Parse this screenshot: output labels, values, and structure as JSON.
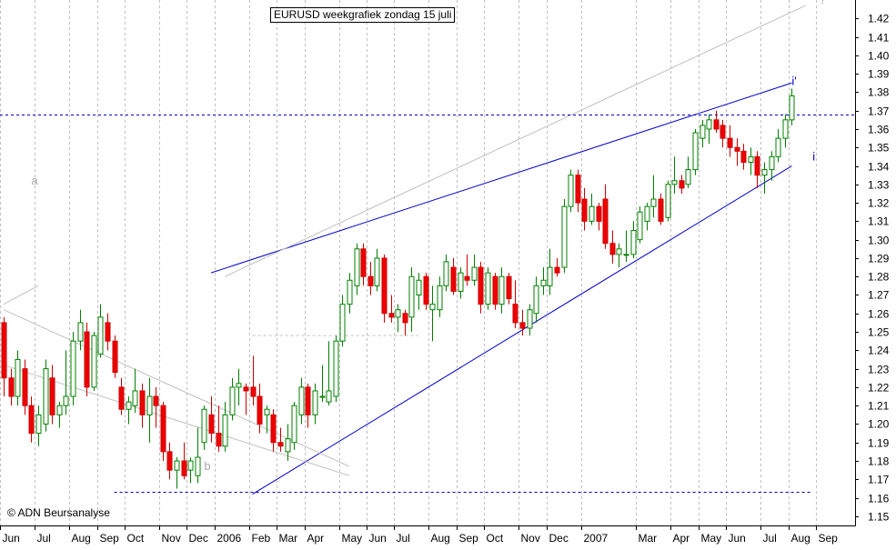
{
  "chart_data": {
    "type": "candlestick",
    "title": "EURUSD weekgrafiek zondag 15 juli",
    "credit": "© ADN Beursanalyse",
    "ylim": [
      1.145,
      1.43
    ],
    "y_ticks": [
      1.15,
      1.16,
      1.17,
      1.18,
      1.19,
      1.2,
      1.21,
      1.22,
      1.23,
      1.24,
      1.25,
      1.26,
      1.27,
      1.28,
      1.29,
      1.3,
      1.31,
      1.32,
      1.33,
      1.34,
      1.35,
      1.36,
      1.37,
      1.38,
      1.39,
      1.4,
      1.41,
      1.42
    ],
    "x_labels": [
      "Jun",
      "Jul",
      "Aug",
      "Sep",
      "Oct",
      "Nov",
      "Dec",
      "2006",
      "Feb",
      "Mar",
      "Apr",
      "May",
      "Jun",
      "Jul",
      "Aug",
      "Sep",
      "Oct",
      "Nov",
      "Dec",
      "2007",
      "Mar",
      "Apr",
      "May",
      "Jun",
      "Jul",
      "Aug",
      "Sep"
    ],
    "x_label_weeks": [
      0,
      5,
      10,
      14,
      18,
      23,
      27,
      31,
      36,
      40,
      44,
      49,
      53,
      57,
      62,
      66,
      70,
      75,
      79,
      84,
      92,
      97,
      101,
      105,
      110,
      114,
      118
    ],
    "weeks_shown": 124,
    "candles": [
      {
        "o": 1.255,
        "h": 1.258,
        "l": 1.215,
        "c": 1.225
      },
      {
        "o": 1.225,
        "h": 1.23,
        "l": 1.21,
        "c": 1.215
      },
      {
        "o": 1.215,
        "h": 1.24,
        "l": 1.21,
        "c": 1.235
      },
      {
        "o": 1.23,
        "h": 1.235,
        "l": 1.205,
        "c": 1.21
      },
      {
        "o": 1.21,
        "h": 1.215,
        "l": 1.19,
        "c": 1.195
      },
      {
        "o": 1.195,
        "h": 1.21,
        "l": 1.188,
        "c": 1.205
      },
      {
        "o": 1.2,
        "h": 1.235,
        "l": 1.196,
        "c": 1.23
      },
      {
        "o": 1.225,
        "h": 1.232,
        "l": 1.2,
        "c": 1.205
      },
      {
        "o": 1.205,
        "h": 1.212,
        "l": 1.198,
        "c": 1.21
      },
      {
        "o": 1.21,
        "h": 1.24,
        "l": 1.205,
        "c": 1.215
      },
      {
        "o": 1.215,
        "h": 1.25,
        "l": 1.21,
        "c": 1.245
      },
      {
        "o": 1.245,
        "h": 1.262,
        "l": 1.24,
        "c": 1.255
      },
      {
        "o": 1.25,
        "h": 1.255,
        "l": 1.215,
        "c": 1.22
      },
      {
        "o": 1.22,
        "h": 1.25,
        "l": 1.218,
        "c": 1.248
      },
      {
        "o": 1.238,
        "h": 1.265,
        "l": 1.236,
        "c": 1.258
      },
      {
        "o": 1.255,
        "h": 1.26,
        "l": 1.24,
        "c": 1.245
      },
      {
        "o": 1.245,
        "h": 1.248,
        "l": 1.225,
        "c": 1.228
      },
      {
        "o": 1.22,
        "h": 1.225,
        "l": 1.205,
        "c": 1.208
      },
      {
        "o": 1.208,
        "h": 1.215,
        "l": 1.2,
        "c": 1.212
      },
      {
        "o": 1.21,
        "h": 1.23,
        "l": 1.206,
        "c": 1.218
      },
      {
        "o": 1.218,
        "h": 1.222,
        "l": 1.198,
        "c": 1.205
      },
      {
        "o": 1.205,
        "h": 1.225,
        "l": 1.19,
        "c": 1.215
      },
      {
        "o": 1.215,
        "h": 1.22,
        "l": 1.198,
        "c": 1.21
      },
      {
        "o": 1.21,
        "h": 1.212,
        "l": 1.18,
        "c": 1.185
      },
      {
        "o": 1.185,
        "h": 1.19,
        "l": 1.17,
        "c": 1.175
      },
      {
        "o": 1.175,
        "h": 1.182,
        "l": 1.165,
        "c": 1.18
      },
      {
        "o": 1.18,
        "h": 1.19,
        "l": 1.17,
        "c": 1.172
      },
      {
        "o": 1.175,
        "h": 1.182,
        "l": 1.168,
        "c": 1.18
      },
      {
        "o": 1.172,
        "h": 1.198,
        "l": 1.168,
        "c": 1.182
      },
      {
        "o": 1.19,
        "h": 1.21,
        "l": 1.186,
        "c": 1.208
      },
      {
        "o": 1.205,
        "h": 1.215,
        "l": 1.19,
        "c": 1.195
      },
      {
        "o": 1.195,
        "h": 1.21,
        "l": 1.185,
        "c": 1.188
      },
      {
        "o": 1.188,
        "h": 1.212,
        "l": 1.185,
        "c": 1.205
      },
      {
        "o": 1.205,
        "h": 1.225,
        "l": 1.202,
        "c": 1.22
      },
      {
        "o": 1.22,
        "h": 1.23,
        "l": 1.21,
        "c": 1.222
      },
      {
        "o": 1.22,
        "h": 1.222,
        "l": 1.205,
        "c": 1.218
      },
      {
        "o": 1.22,
        "h": 1.237,
        "l": 1.21,
        "c": 1.215
      },
      {
        "o": 1.215,
        "h": 1.222,
        "l": 1.195,
        "c": 1.2
      },
      {
        "o": 1.205,
        "h": 1.21,
        "l": 1.195,
        "c": 1.208
      },
      {
        "o": 1.205,
        "h": 1.208,
        "l": 1.185,
        "c": 1.19
      },
      {
        "o": 1.19,
        "h": 1.198,
        "l": 1.185,
        "c": 1.188
      },
      {
        "o": 1.185,
        "h": 1.2,
        "l": 1.18,
        "c": 1.192
      },
      {
        "o": 1.19,
        "h": 1.212,
        "l": 1.186,
        "c": 1.21
      },
      {
        "o": 1.205,
        "h": 1.225,
        "l": 1.2,
        "c": 1.22
      },
      {
        "o": 1.22,
        "h": 1.222,
        "l": 1.198,
        "c": 1.205
      },
      {
        "o": 1.205,
        "h": 1.222,
        "l": 1.2,
        "c": 1.218
      },
      {
        "o": 1.215,
        "h": 1.232,
        "l": 1.212,
        "c": 1.215
      },
      {
        "o": 1.212,
        "h": 1.245,
        "l": 1.21,
        "c": 1.218
      },
      {
        "o": 1.215,
        "h": 1.248,
        "l": 1.212,
        "c": 1.245
      },
      {
        "o": 1.245,
        "h": 1.27,
        "l": 1.242,
        "c": 1.265
      },
      {
        "o": 1.265,
        "h": 1.282,
        "l": 1.26,
        "c": 1.278
      },
      {
        "o": 1.275,
        "h": 1.298,
        "l": 1.27,
        "c": 1.295
      },
      {
        "o": 1.295,
        "h": 1.298,
        "l": 1.275,
        "c": 1.28
      },
      {
        "o": 1.28,
        "h": 1.288,
        "l": 1.27,
        "c": 1.275
      },
      {
        "o": 1.275,
        "h": 1.295,
        "l": 1.272,
        "c": 1.29
      },
      {
        "o": 1.29,
        "h": 1.292,
        "l": 1.255,
        "c": 1.26
      },
      {
        "o": 1.26,
        "h": 1.27,
        "l": 1.255,
        "c": 1.258
      },
      {
        "o": 1.258,
        "h": 1.265,
        "l": 1.25,
        "c": 1.262
      },
      {
        "o": 1.26,
        "h": 1.262,
        "l": 1.248,
        "c": 1.255
      },
      {
        "o": 1.258,
        "h": 1.285,
        "l": 1.25,
        "c": 1.28
      },
      {
        "o": 1.27,
        "h": 1.282,
        "l": 1.262,
        "c": 1.278
      },
      {
        "o": 1.28,
        "h": 1.282,
        "l": 1.262,
        "c": 1.265
      },
      {
        "o": 1.262,
        "h": 1.275,
        "l": 1.245,
        "c": 1.265
      },
      {
        "o": 1.262,
        "h": 1.28,
        "l": 1.258,
        "c": 1.275
      },
      {
        "o": 1.275,
        "h": 1.292,
        "l": 1.272,
        "c": 1.288
      },
      {
        "o": 1.285,
        "h": 1.29,
        "l": 1.27,
        "c": 1.272
      },
      {
        "o": 1.272,
        "h": 1.285,
        "l": 1.268,
        "c": 1.282
      },
      {
        "o": 1.28,
        "h": 1.292,
        "l": 1.275,
        "c": 1.278
      },
      {
        "o": 1.278,
        "h": 1.292,
        "l": 1.275,
        "c": 1.285
      },
      {
        "o": 1.285,
        "h": 1.288,
        "l": 1.26,
        "c": 1.265
      },
      {
        "o": 1.265,
        "h": 1.285,
        "l": 1.262,
        "c": 1.282
      },
      {
        "o": 1.28,
        "h": 1.282,
        "l": 1.262,
        "c": 1.265
      },
      {
        "o": 1.265,
        "h": 1.285,
        "l": 1.26,
        "c": 1.28
      },
      {
        "o": 1.28,
        "h": 1.282,
        "l": 1.265,
        "c": 1.268
      },
      {
        "o": 1.265,
        "h": 1.278,
        "l": 1.252,
        "c": 1.255
      },
      {
        "o": 1.255,
        "h": 1.262,
        "l": 1.248,
        "c": 1.252
      },
      {
        "o": 1.252,
        "h": 1.265,
        "l": 1.248,
        "c": 1.262
      },
      {
        "o": 1.26,
        "h": 1.28,
        "l": 1.255,
        "c": 1.275
      },
      {
        "o": 1.275,
        "h": 1.285,
        "l": 1.27,
        "c": 1.278
      },
      {
        "o": 1.275,
        "h": 1.295,
        "l": 1.27,
        "c": 1.285
      },
      {
        "o": 1.285,
        "h": 1.29,
        "l": 1.28,
        "c": 1.282
      },
      {
        "o": 1.285,
        "h": 1.322,
        "l": 1.282,
        "c": 1.318
      },
      {
        "o": 1.318,
        "h": 1.338,
        "l": 1.315,
        "c": 1.335
      },
      {
        "o": 1.335,
        "h": 1.338,
        "l": 1.315,
        "c": 1.32
      },
      {
        "o": 1.322,
        "h": 1.328,
        "l": 1.305,
        "c": 1.31
      },
      {
        "o": 1.31,
        "h": 1.325,
        "l": 1.308,
        "c": 1.318
      },
      {
        "o": 1.318,
        "h": 1.32,
        "l": 1.305,
        "c": 1.31
      },
      {
        "o": 1.322,
        "h": 1.33,
        "l": 1.295,
        "c": 1.298
      },
      {
        "o": 1.298,
        "h": 1.305,
        "l": 1.287,
        "c": 1.292
      },
      {
        "o": 1.292,
        "h": 1.298,
        "l": 1.285,
        "c": 1.295
      },
      {
        "o": 1.292,
        "h": 1.305,
        "l": 1.288,
        "c": 1.292
      },
      {
        "o": 1.292,
        "h": 1.31,
        "l": 1.29,
        "c": 1.305
      },
      {
        "o": 1.3,
        "h": 1.318,
        "l": 1.298,
        "c": 1.315
      },
      {
        "o": 1.31,
        "h": 1.32,
        "l": 1.305,
        "c": 1.318
      },
      {
        "o": 1.318,
        "h": 1.335,
        "l": 1.312,
        "c": 1.322
      },
      {
        "o": 1.322,
        "h": 1.325,
        "l": 1.308,
        "c": 1.31
      },
      {
        "o": 1.312,
        "h": 1.332,
        "l": 1.31,
        "c": 1.33
      },
      {
        "o": 1.33,
        "h": 1.345,
        "l": 1.325,
        "c": 1.332
      },
      {
        "o": 1.332,
        "h": 1.335,
        "l": 1.325,
        "c": 1.328
      },
      {
        "o": 1.33,
        "h": 1.345,
        "l": 1.328,
        "c": 1.338
      },
      {
        "o": 1.338,
        "h": 1.36,
        "l": 1.335,
        "c": 1.358
      },
      {
        "o": 1.355,
        "h": 1.365,
        "l": 1.35,
        "c": 1.362
      },
      {
        "o": 1.36,
        "h": 1.368,
        "l": 1.352,
        "c": 1.365
      },
      {
        "o": 1.365,
        "h": 1.37,
        "l": 1.358,
        "c": 1.36
      },
      {
        "o": 1.362,
        "h": 1.365,
        "l": 1.35,
        "c": 1.355
      },
      {
        "o": 1.355,
        "h": 1.362,
        "l": 1.345,
        "c": 1.35
      },
      {
        "o": 1.35,
        "h": 1.355,
        "l": 1.34,
        "c": 1.348
      },
      {
        "o": 1.348,
        "h": 1.352,
        "l": 1.338,
        "c": 1.342
      },
      {
        "o": 1.342,
        "h": 1.35,
        "l": 1.335,
        "c": 1.345
      },
      {
        "o": 1.345,
        "h": 1.348,
        "l": 1.328,
        "c": 1.335
      },
      {
        "o": 1.335,
        "h": 1.342,
        "l": 1.325,
        "c": 1.338
      },
      {
        "o": 1.338,
        "h": 1.348,
        "l": 1.332,
        "c": 1.345
      },
      {
        "o": 1.345,
        "h": 1.36,
        "l": 1.342,
        "c": 1.355
      },
      {
        "o": 1.355,
        "h": 1.368,
        "l": 1.35,
        "c": 1.365
      },
      {
        "o": 1.365,
        "h": 1.382,
        "l": 1.362,
        "c": 1.378
      }
    ],
    "lines": [
      {
        "kind": "trend",
        "color": "#0000cc",
        "style": "solid",
        "x1": 36,
        "y1": 1.162,
        "x2": 114,
        "y2": 1.34
      },
      {
        "kind": "trend",
        "color": "#0000cc",
        "style": "solid",
        "x1": 30,
        "y1": 1.282,
        "x2": 114,
        "y2": 1.385
      },
      {
        "kind": "trend",
        "color": "#c0c0c0",
        "style": "solid",
        "x1": 32,
        "y1": 1.28,
        "x2": 116,
        "y2": 1.427
      },
      {
        "kind": "trend",
        "color": "#c0c0c0",
        "style": "solid",
        "x1": 0,
        "y1": 1.262,
        "x2": 50,
        "y2": 1.177
      },
      {
        "kind": "trend",
        "color": "#c0c0c0",
        "style": "solid",
        "x1": 0,
        "y1": 1.232,
        "x2": 50,
        "y2": 1.172
      },
      {
        "kind": "trend",
        "color": "#c0c0c0",
        "style": "solid",
        "x1": 0,
        "y1": 1.265,
        "x2": 5,
        "y2": 1.275
      },
      {
        "kind": "hline",
        "color": "#0000cc",
        "style": "dashed",
        "y": 1.368
      },
      {
        "kind": "segment",
        "color": "#0000cc",
        "style": "dashed",
        "x1": 16,
        "y1": 1.163,
        "x2": 117,
        "y2": 1.163
      },
      {
        "kind": "segment",
        "color": "#c0c0c0",
        "style": "dashed",
        "x1": 36,
        "y1": 1.248,
        "x2": 60,
        "y2": 1.248
      }
    ],
    "annotations": [
      {
        "text": "a",
        "x": 4,
        "y": 1.33,
        "color": "#aaaaaa"
      },
      {
        "text": "b",
        "x": 29,
        "y": 1.175,
        "color": "#aaaaaa"
      },
      {
        "text": "?",
        "x": 118,
        "y": 1.428,
        "color": "#aaaaaa"
      },
      {
        "text": "i'",
        "x": 114,
        "y": 1.384,
        "color": "#0000cc"
      },
      {
        "text": "i",
        "x": 117,
        "y": 1.343,
        "color": "#0000cc"
      }
    ],
    "colors": {
      "up_body": "#ffffff",
      "up_outline": "#008000",
      "down_body": "#ee0000",
      "down_outline": "#cc0000",
      "grid": "#c0c0c0",
      "axis": "#000000"
    },
    "grid": true
  }
}
